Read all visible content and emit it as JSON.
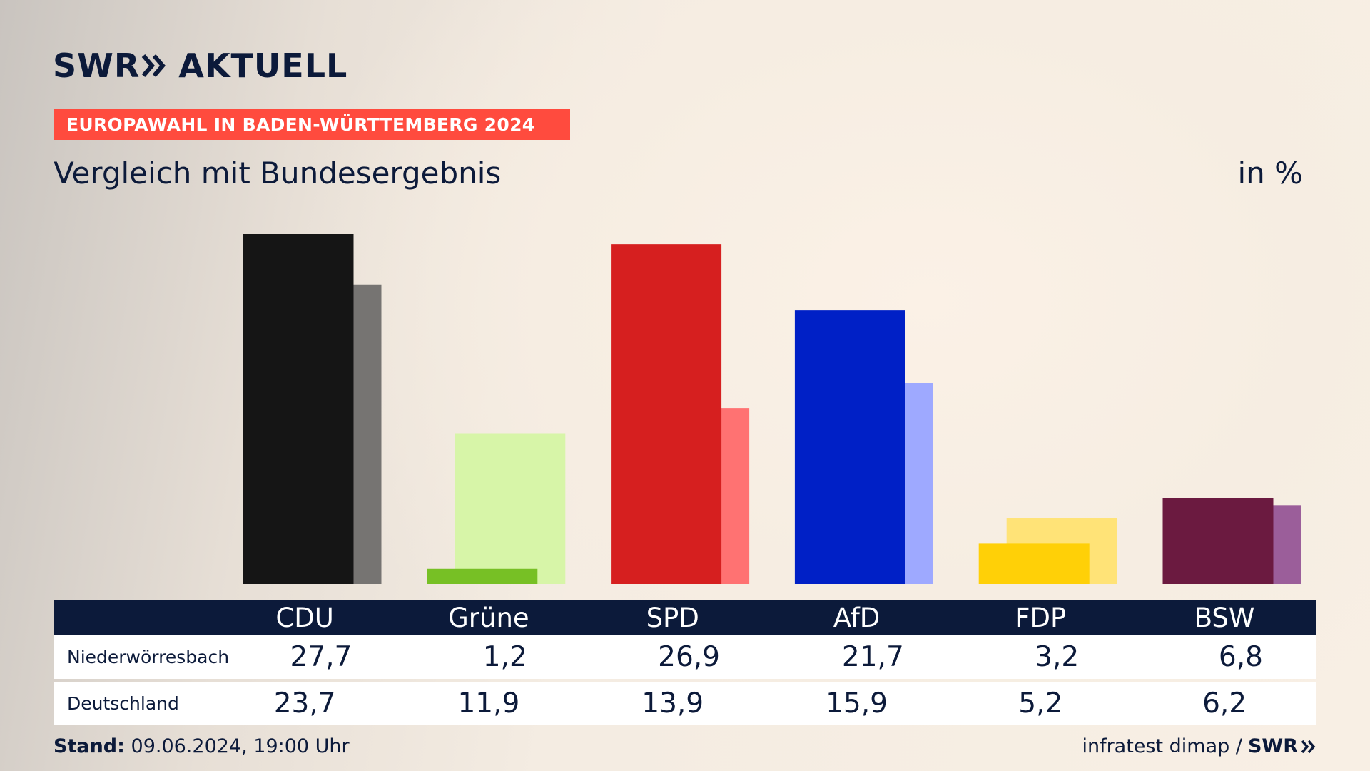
{
  "brand": {
    "swr": "SWR",
    "aktuell": "AKTUELL"
  },
  "banner": "EUROPAWAHL IN BADEN-WÜRTTEMBERG 2024",
  "subtitle": "Vergleich mit Bundesergebnis",
  "unit": "in %",
  "chart_data": {
    "type": "bar",
    "categories": [
      "CDU",
      "Grüne",
      "SPD",
      "AfD",
      "FDP",
      "BSW"
    ],
    "series": [
      {
        "name": "Niederwörresbach",
        "values": [
          27.7,
          1.2,
          26.9,
          21.7,
          3.2,
          6.8
        ],
        "colors": [
          "#151515",
          "#77c025",
          "#d61f1f",
          "#0020c6",
          "#ffd007",
          "#6b1a40"
        ]
      },
      {
        "name": "Deutschland",
        "values": [
          23.7,
          11.9,
          13.9,
          15.9,
          5.2,
          6.2
        ],
        "colors": [
          "#767472",
          "#d7f5a8",
          "#ff7272",
          "#9ea9ff",
          "#ffe377",
          "#9b5e9a"
        ]
      }
    ],
    "ylim": [
      0,
      27.7
    ]
  },
  "table": {
    "rows": [
      {
        "label": "Niederwörresbach",
        "values": [
          "27,7",
          "1,2",
          "26,9",
          "21,7",
          "3,2",
          "6,8"
        ]
      },
      {
        "label": "Deutschland",
        "values": [
          "23,7",
          "11,9",
          "13,9",
          "15,9",
          "5,2",
          "6,2"
        ]
      }
    ]
  },
  "footer": {
    "stand_label": "Stand:",
    "stand_value": "09.06.2024, 19:00 Uhr",
    "source": "infratest dimap /",
    "source_logo": "SWR"
  }
}
